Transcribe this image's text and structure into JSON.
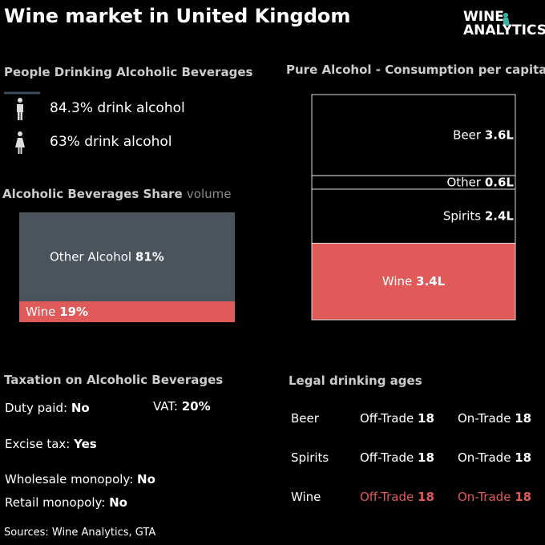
{
  "header": {
    "title": "Wine market in United Kingdom",
    "logo_top": "WINE",
    "logo_bottom": "ANALYTICS"
  },
  "drinkers": {
    "title": "People Drinking Alcoholic Beverages",
    "rows": [
      {
        "share": "84.3%",
        "text": "drink alcohol"
      },
      {
        "share": "63%",
        "text": "drink alcohol"
      }
    ]
  },
  "chart_data": [
    {
      "type": "share",
      "title": "Alcoholic Beverages Share",
      "subtitle": "volume",
      "series": [
        {
          "name": "Other Alcohol",
          "color": "#4b535c",
          "values": [
            81
          ],
          "value_labels": [
            "81%"
          ]
        },
        {
          "name": "Wine",
          "color": "#e05a5a",
          "values": [
            19
          ],
          "value_labels": [
            "19%"
          ]
        }
      ]
    },
    {
      "type": "bands",
      "title": "Pure Alcohol - Consumption per capita",
      "series": [
        {
          "name": "Beer",
          "color": "#000000",
          "values": [
            3.6
          ],
          "value_labels": [
            "3.6L"
          ]
        },
        {
          "name": "Other",
          "color": "#000000",
          "values": [
            0.6
          ],
          "value_labels": [
            "0.6L"
          ]
        },
        {
          "name": "Spirits",
          "color": "#000000",
          "values": [
            2.4
          ],
          "value_labels": [
            "2.4L"
          ]
        },
        {
          "name": "Wine",
          "color": "#e05a5a",
          "values": [
            3.4
          ],
          "value_labels": [
            "3.4L"
          ]
        }
      ]
    }
  ],
  "taxation": {
    "title": "Taxation on Alcoholic Beverages",
    "items": [
      {
        "label": "Duty paid:",
        "value": "No"
      },
      {
        "label": "VAT:",
        "value": "20%"
      },
      {
        "label": "Excise tax:",
        "value": "Yes"
      },
      {
        "label": "Wholesale monopoly:",
        "value": "No"
      },
      {
        "label": "Retail monopoly:",
        "value": "No"
      }
    ]
  },
  "drinking_ages": {
    "title": "Legal drinking ages",
    "rows": [
      {
        "drink": "Beer",
        "off_label": "Off-Trade",
        "off": "18",
        "on_label": "On-Trade",
        "on": "18"
      },
      {
        "drink": "Spirits",
        "off_label": "Off-Trade",
        "off": "18",
        "on_label": "On-Trade",
        "on": "18"
      },
      {
        "drink": "Wine",
        "off_label": "Off-Trade",
        "off": "18",
        "on_label": "On-Trade",
        "on": "18"
      }
    ]
  },
  "sources": "Sources: Wine Analytics, GTA"
}
